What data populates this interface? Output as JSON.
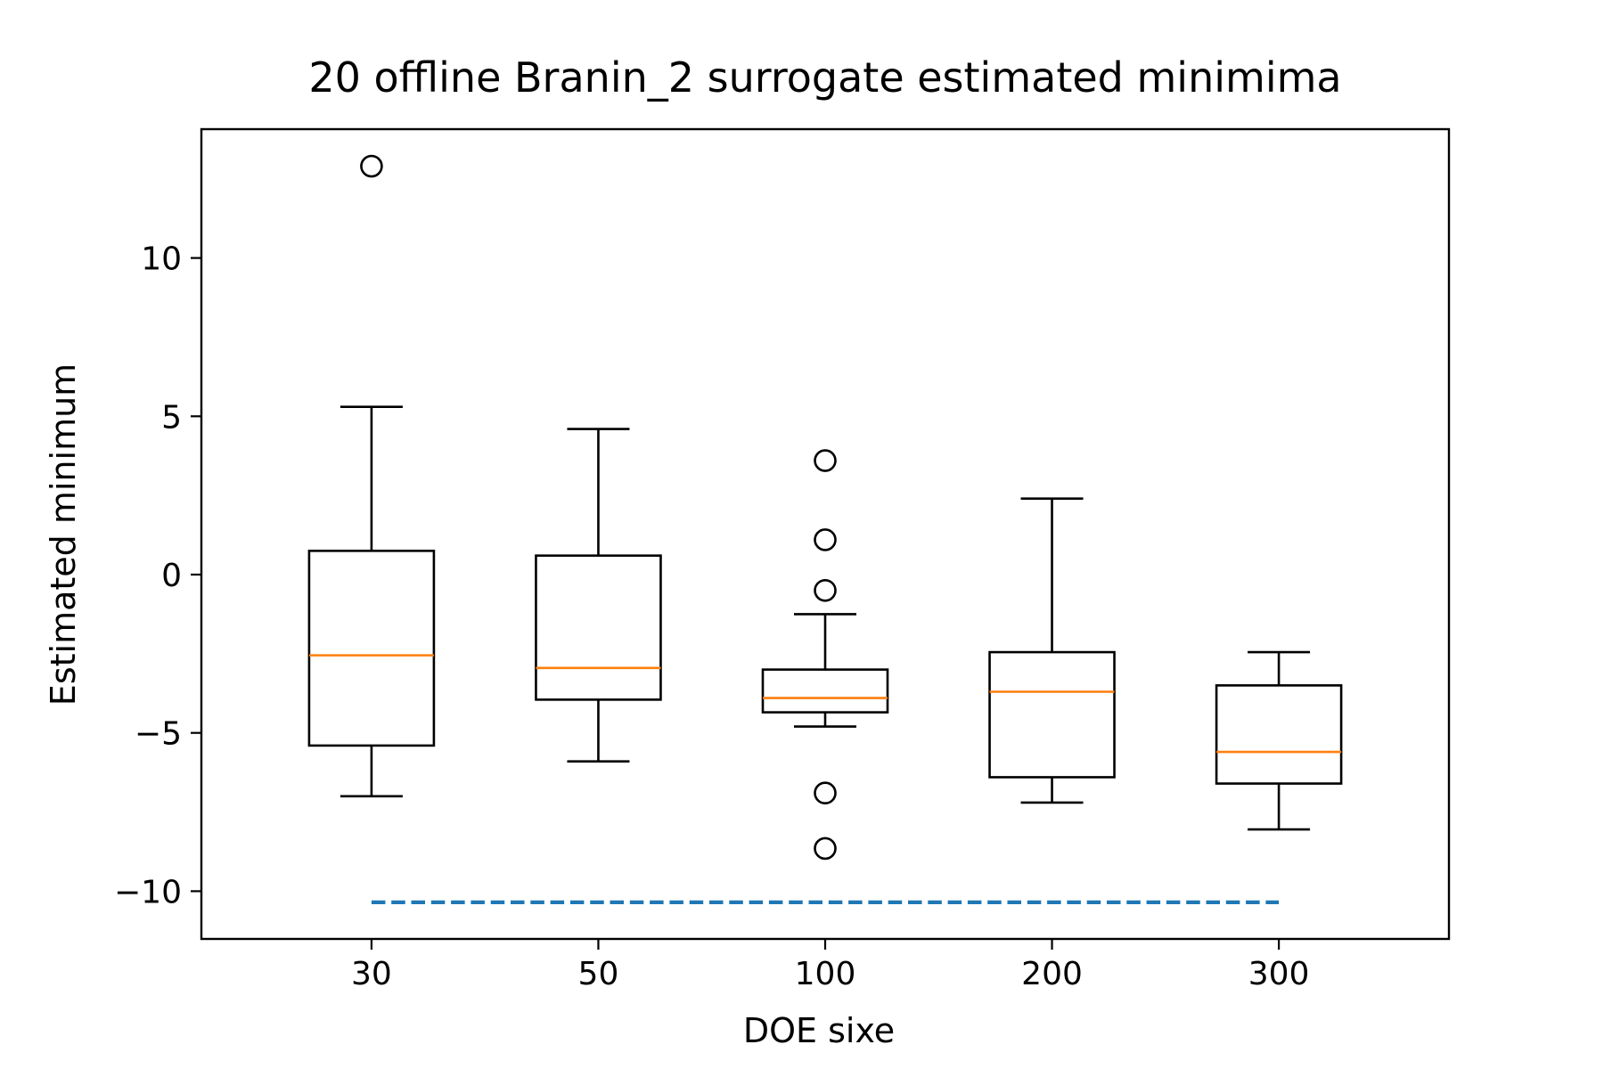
{
  "chart_data": {
    "type": "box",
    "title": "20 offline Branin_2 surrogate estimated minimima",
    "xlabel": "DOE sixe",
    "ylabel": "Estimated minimum",
    "categories": [
      "30",
      "50",
      "100",
      "200",
      "300"
    ],
    "ylim": [
      -11.5,
      14.0
    ],
    "yticks": [
      10,
      5,
      0,
      -5,
      -10
    ],
    "ytick_labels": [
      "10",
      "5",
      "0",
      "−5",
      "−10"
    ],
    "boxes": [
      {
        "category": "30",
        "whisker_low": -7.0,
        "q1": -5.4,
        "median": -2.55,
        "q3": 0.75,
        "whisker_high": 5.3,
        "outliers": [
          12.9
        ]
      },
      {
        "category": "50",
        "whisker_low": -5.9,
        "q1": -3.95,
        "median": -2.95,
        "q3": 0.6,
        "whisker_high": 4.6,
        "outliers": []
      },
      {
        "category": "100",
        "whisker_low": -4.8,
        "q1": -4.35,
        "median": -3.9,
        "q3": -3.0,
        "whisker_high": -1.25,
        "outliers": [
          3.6,
          1.1,
          -0.5,
          -6.9,
          -8.65
        ]
      },
      {
        "category": "200",
        "whisker_low": -7.2,
        "q1": -6.4,
        "median": -3.7,
        "q3": -2.45,
        "whisker_high": 2.4,
        "outliers": []
      },
      {
        "category": "300",
        "whisker_low": -8.05,
        "q1": -6.6,
        "median": -5.6,
        "q3": -3.5,
        "whisker_high": -2.45,
        "outliers": []
      }
    ],
    "reference_line": {
      "y": -10.35,
      "style": "dashed"
    },
    "colors": {
      "box": "#000000",
      "median": "#ff7f0e",
      "reference": "#1f77b4"
    },
    "grid": false
  }
}
